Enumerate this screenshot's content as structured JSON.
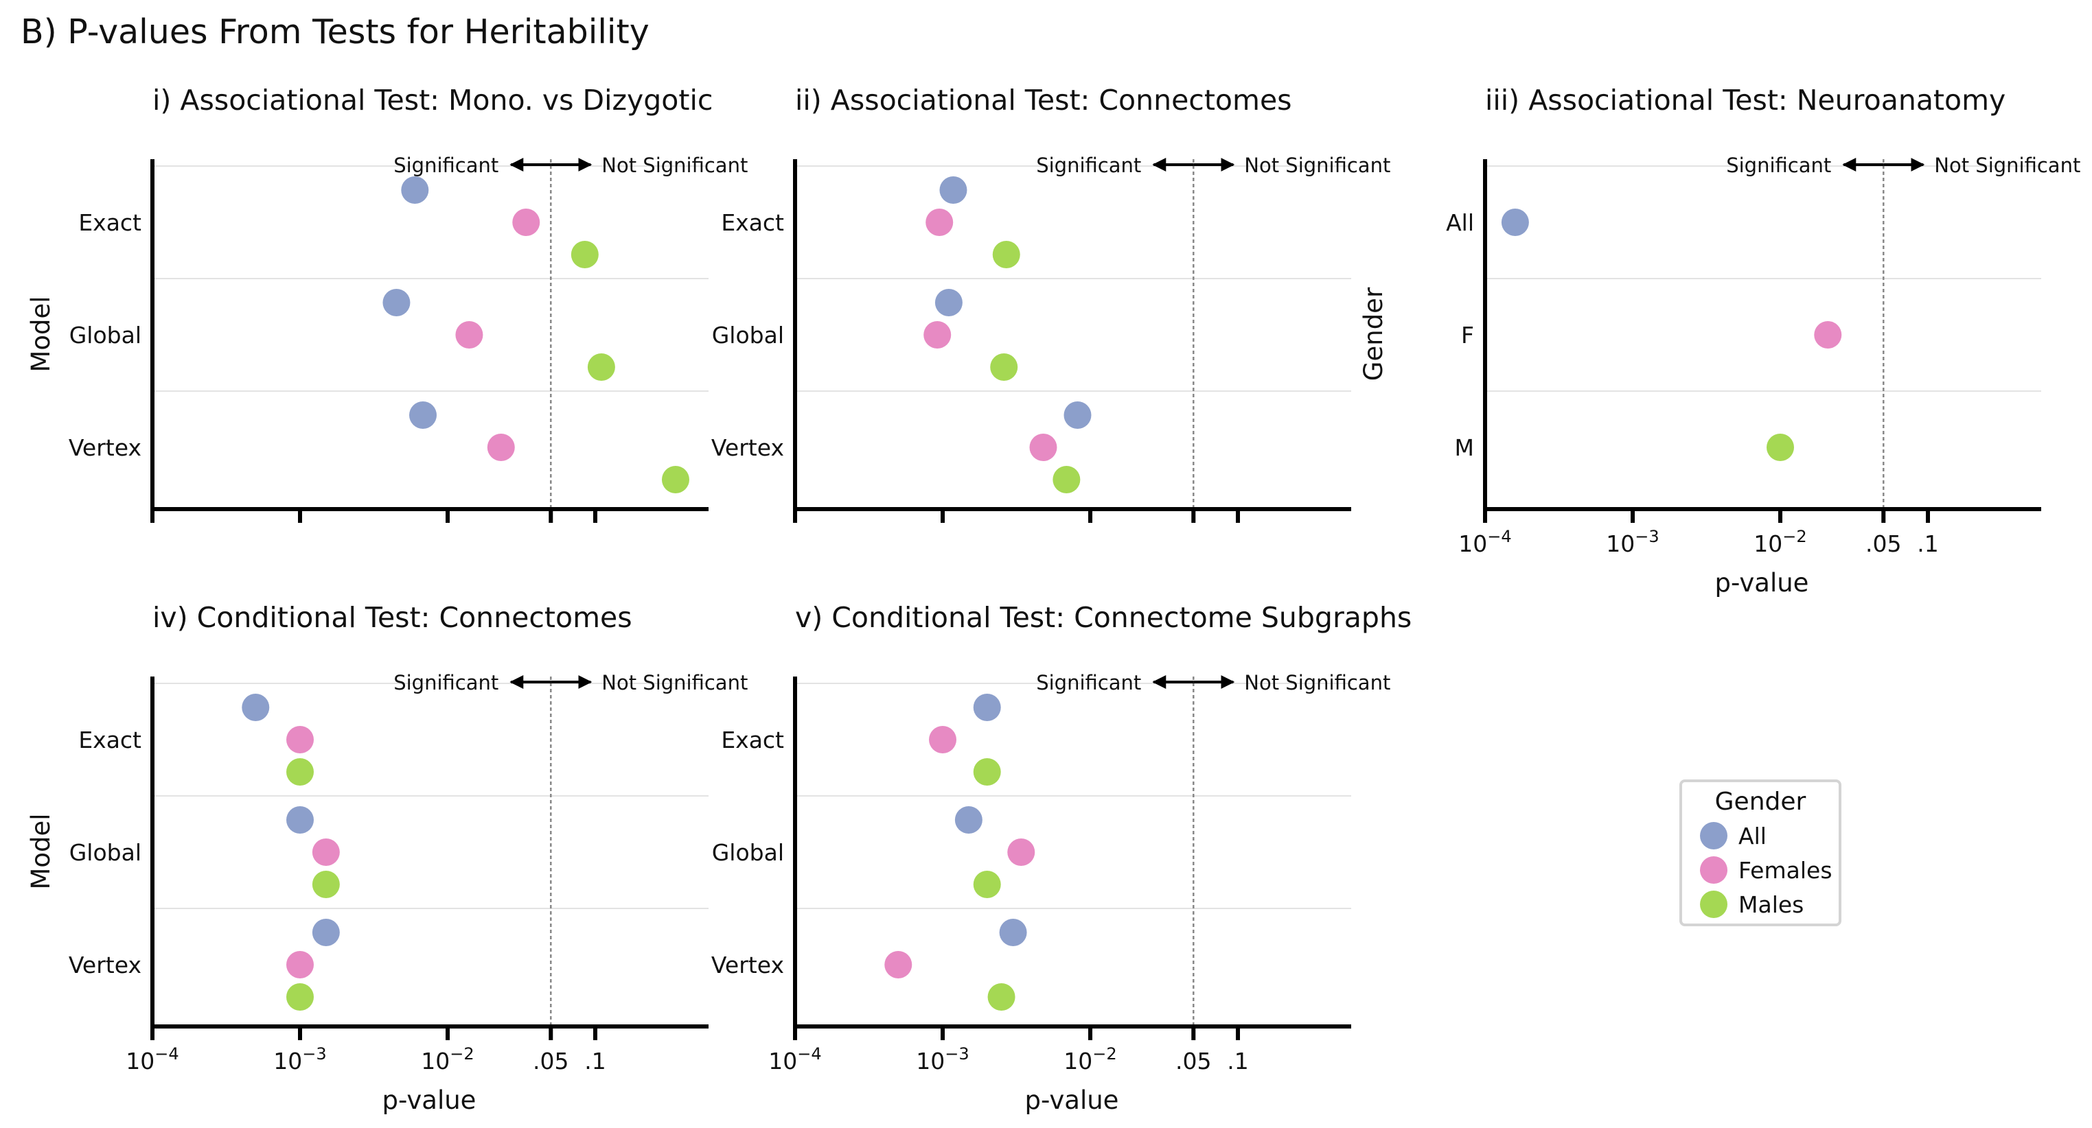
{
  "figure": {
    "title": "B) P-values From Tests for Heritability"
  },
  "legend": {
    "title": "Gender",
    "items": [
      {
        "label": "All",
        "color": "#8c9fcb"
      },
      {
        "label": "Females",
        "color": "#e78ac3"
      },
      {
        "label": "Males",
        "color": "#a5d853"
      }
    ]
  },
  "annotation": {
    "left": "Significant",
    "right": "Not Significant"
  },
  "chart_data": [
    {
      "type": "scatter",
      "title": "i) Associational Test: Mono. vs Dizygotic",
      "xlabel": "",
      "ylabel": "Model",
      "x_scale": "log",
      "xlim": [
        0.0001,
        1
      ],
      "x_ticks": [],
      "threshold": 0.05,
      "categories": [
        "Exact",
        "Global",
        "Vertex"
      ],
      "series": [
        {
          "name": "All",
          "color": "#8c9fcb",
          "values": [
            0.006,
            0.0045,
            0.0068
          ]
        },
        {
          "name": "Females",
          "color": "#e78ac3",
          "values": [
            0.034,
            0.014,
            0.023
          ]
        },
        {
          "name": "Males",
          "color": "#a5d853",
          "values": [
            0.085,
            0.11,
            0.35
          ]
        }
      ]
    },
    {
      "type": "scatter",
      "title": "ii) Associational Test: Connectomes",
      "xlabel": "",
      "ylabel": "",
      "x_scale": "log",
      "xlim": [
        0.0001,
        1
      ],
      "x_ticks": [],
      "threshold": 0.05,
      "categories": [
        "Exact",
        "Global",
        "Vertex"
      ],
      "series": [
        {
          "name": "All",
          "color": "#8c9fcb",
          "values": [
            0.00118,
            0.0011,
            0.0082
          ]
        },
        {
          "name": "Females",
          "color": "#e78ac3",
          "values": [
            0.00095,
            0.00092,
            0.0048
          ]
        },
        {
          "name": "Males",
          "color": "#a5d853",
          "values": [
            0.0027,
            0.0026,
            0.0069
          ]
        }
      ]
    },
    {
      "type": "scatter",
      "title": "iii) Associational Test: Neuroanatomy",
      "xlabel": "p-value",
      "ylabel": "Gender",
      "x_scale": "log",
      "xlim": [
        0.0001,
        1
      ],
      "x_ticks": [
        {
          "value": 0.0001,
          "base": "10",
          "exp": "−4"
        },
        {
          "value": 0.001,
          "base": "10",
          "exp": "−3"
        },
        {
          "value": 0.01,
          "base": "10",
          "exp": "−2"
        },
        {
          "value": 0.05,
          "label": ".05"
        },
        {
          "value": 0.1,
          "label": ".1"
        }
      ],
      "threshold": 0.05,
      "categories": [
        "All",
        "F",
        "M"
      ],
      "series": [
        {
          "name": "All",
          "color": "#8c9fcb",
          "offset_row": 0,
          "values": [
            0.00016,
            null,
            null
          ]
        },
        {
          "name": "Females",
          "color": "#e78ac3",
          "offset_row": 0,
          "values": [
            null,
            0.021,
            null
          ]
        },
        {
          "name": "Males",
          "color": "#a5d853",
          "offset_row": 0,
          "values": [
            null,
            null,
            0.01
          ]
        }
      ]
    },
    {
      "type": "scatter",
      "title": "iv) Conditional Test: Connectomes",
      "xlabel": "p-value",
      "ylabel": "Model",
      "x_scale": "log",
      "xlim": [
        0.0001,
        1
      ],
      "x_ticks": [
        {
          "value": 0.0001,
          "base": "10",
          "exp": "−4"
        },
        {
          "value": 0.001,
          "base": "10",
          "exp": "−3"
        },
        {
          "value": 0.01,
          "base": "10",
          "exp": "−2"
        },
        {
          "value": 0.05,
          "label": ".05"
        },
        {
          "value": 0.1,
          "label": ".1"
        }
      ],
      "threshold": 0.05,
      "categories": [
        "Exact",
        "Global",
        "Vertex"
      ],
      "series": [
        {
          "name": "All",
          "color": "#8c9fcb",
          "values": [
            0.0005,
            0.001,
            0.0015
          ]
        },
        {
          "name": "Females",
          "color": "#e78ac3",
          "values": [
            0.001,
            0.0015,
            0.001
          ]
        },
        {
          "name": "Males",
          "color": "#a5d853",
          "values": [
            0.001,
            0.0015,
            0.001
          ]
        }
      ]
    },
    {
      "type": "scatter",
      "title": "v) Conditional Test: Connectome Subgraphs",
      "xlabel": "p-value",
      "ylabel": "",
      "x_scale": "log",
      "xlim": [
        0.0001,
        1
      ],
      "x_ticks": [
        {
          "value": 0.0001,
          "base": "10",
          "exp": "−4"
        },
        {
          "value": 0.001,
          "base": "10",
          "exp": "−3"
        },
        {
          "value": 0.01,
          "base": "10",
          "exp": "−2"
        },
        {
          "value": 0.05,
          "label": ".05"
        },
        {
          "value": 0.1,
          "label": ".1"
        }
      ],
      "threshold": 0.05,
      "categories": [
        "Exact",
        "Global",
        "Vertex"
      ],
      "series": [
        {
          "name": "All",
          "color": "#8c9fcb",
          "values": [
            0.002,
            0.0015,
            0.003
          ]
        },
        {
          "name": "Females",
          "color": "#e78ac3",
          "values": [
            0.001,
            0.0034,
            0.0005
          ]
        },
        {
          "name": "Males",
          "color": "#a5d853",
          "values": [
            0.002,
            0.002,
            0.0025
          ]
        }
      ]
    }
  ]
}
